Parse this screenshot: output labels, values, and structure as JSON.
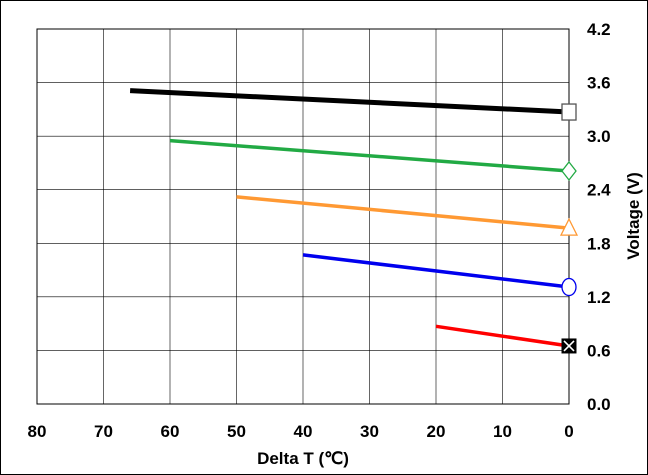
{
  "chart_data": {
    "type": "line",
    "title": "",
    "xlabel": "Delta T (℃)",
    "ylabel": "Voltage (V)",
    "xlim": [
      80,
      0
    ],
    "ylim": [
      0.0,
      4.2
    ],
    "x_reversed": true,
    "x_ticks": [
      "80",
      "70",
      "60",
      "50",
      "40",
      "30",
      "20",
      "10",
      "0"
    ],
    "y_ticks": [
      "0.0",
      "0.6",
      "1.2",
      "1.8",
      "2.4",
      "3.0",
      "3.6",
      "4.2"
    ],
    "grid": true,
    "legend": "none",
    "series": [
      {
        "color": "#000000",
        "marker": "square",
        "points": [
          [
            66,
            3.51
          ],
          [
            0,
            3.27
          ]
        ]
      },
      {
        "color": "#22aa44",
        "marker": "diamond",
        "points": [
          [
            60,
            2.95
          ],
          [
            0,
            2.61
          ]
        ]
      },
      {
        "color": "#ff9933",
        "marker": "triangle",
        "points": [
          [
            50,
            2.32
          ],
          [
            0,
            1.97
          ]
        ]
      },
      {
        "color": "#0000ee",
        "marker": "circle",
        "points": [
          [
            40,
            1.67
          ],
          [
            0,
            1.31
          ]
        ]
      },
      {
        "color": "#ff0000",
        "marker": "x-square",
        "points": [
          [
            20,
            0.87
          ],
          [
            0,
            0.65
          ]
        ]
      }
    ]
  }
}
